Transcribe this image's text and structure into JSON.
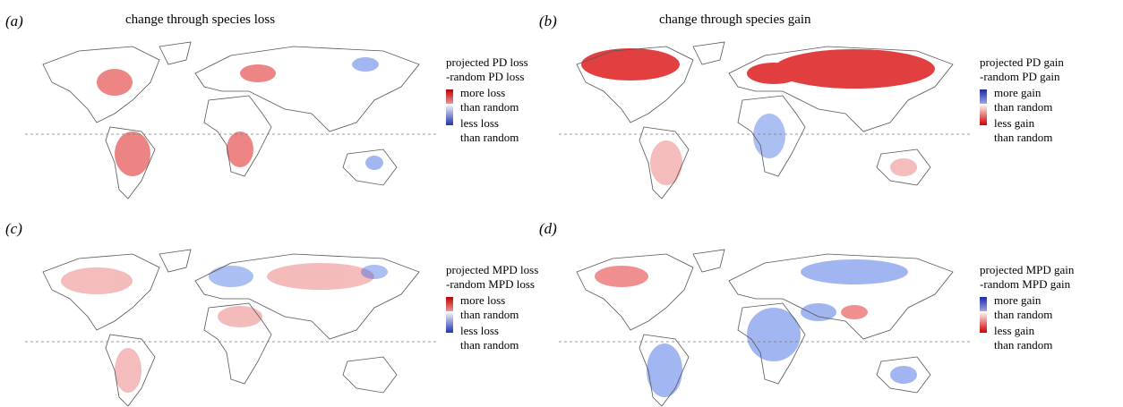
{
  "panels": [
    {
      "label": "(a)",
      "title": "change through species loss",
      "legend_title": [
        "projected PD loss",
        "-random PD loss"
      ],
      "items": [
        [
          "more loss",
          "than random"
        ],
        [
          "less loss",
          "than random"
        ]
      ]
    },
    {
      "label": "(b)",
      "title": "change through species gain",
      "legend_title": [
        "projected PD gain",
        "-random PD gain"
      ],
      "items": [
        [
          "more gain",
          "than random"
        ],
        [
          "less gain",
          "than random"
        ]
      ]
    },
    {
      "label": "(c)",
      "legend_title": [
        "projected MPD loss",
        "-random MPD loss"
      ],
      "items": [
        [
          "more loss",
          "than random"
        ],
        [
          "less loss",
          "than random"
        ]
      ]
    },
    {
      "label": "(d)",
      "legend_title": [
        "projected MPD gain",
        "-random MPD gain"
      ],
      "items": [
        [
          "more gain",
          "than random"
        ],
        [
          "less gain",
          "than random"
        ]
      ]
    }
  ]
}
